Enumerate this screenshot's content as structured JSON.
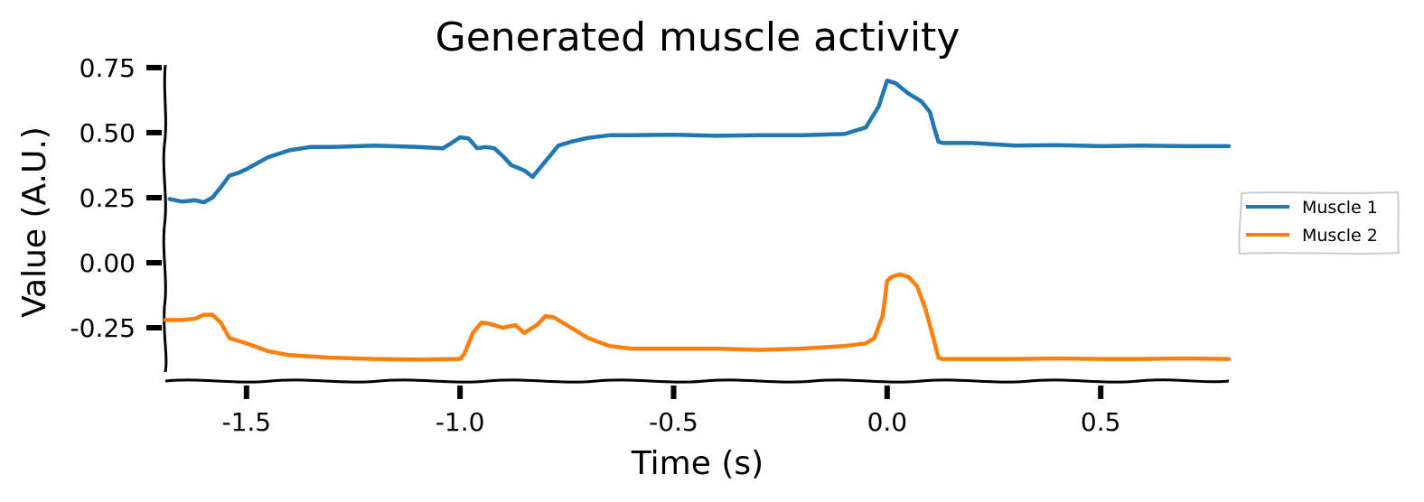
{
  "chart_data": {
    "type": "line",
    "title": "Generated muscle activity",
    "xlabel": "Time (s)",
    "ylabel": "Value (A.U.)",
    "xlim": [
      -1.69,
      0.8
    ],
    "ylim": [
      -0.42,
      0.76
    ],
    "xticks": [
      -1.5,
      -1.0,
      -0.5,
      0.0,
      0.5
    ],
    "xtick_labels": [
      "-1.5",
      "-1.0",
      "-0.5",
      "0.0",
      "0.5"
    ],
    "yticks": [
      0.75,
      0.5,
      0.25,
      0.0,
      -0.25
    ],
    "ytick_labels": [
      "0.75",
      "0.50",
      "0.25",
      "0.00",
      "-0.25"
    ],
    "grid": false,
    "legend_position": "center-right outside",
    "colors": {
      "muscle1": "#1f77b4",
      "muscle2": "#ff7f0e"
    },
    "series": [
      {
        "name": "Muscle 1",
        "color": "#1f77b4",
        "x": [
          -1.68,
          -1.65,
          -1.62,
          -1.6,
          -1.58,
          -1.56,
          -1.54,
          -1.52,
          -1.5,
          -1.45,
          -1.4,
          -1.35,
          -1.3,
          -1.2,
          -1.1,
          -1.04,
          -1.02,
          -1.0,
          -0.98,
          -0.96,
          -0.94,
          -0.92,
          -0.9,
          -0.88,
          -0.85,
          -0.83,
          -0.8,
          -0.77,
          -0.74,
          -0.7,
          -0.65,
          -0.6,
          -0.5,
          -0.4,
          -0.3,
          -0.2,
          -0.1,
          -0.05,
          -0.02,
          0.0,
          0.02,
          0.05,
          0.08,
          0.1,
          0.11,
          0.12,
          0.13,
          0.2,
          0.3,
          0.4,
          0.5,
          0.6,
          0.7,
          0.8
        ],
        "values": [
          0.245,
          0.235,
          0.24,
          0.232,
          0.25,
          0.29,
          0.335,
          0.345,
          0.36,
          0.405,
          0.432,
          0.445,
          0.445,
          0.45,
          0.445,
          0.44,
          0.46,
          0.482,
          0.478,
          0.44,
          0.445,
          0.44,
          0.41,
          0.375,
          0.355,
          0.33,
          0.39,
          0.45,
          0.465,
          0.48,
          0.49,
          0.49,
          0.492,
          0.488,
          0.49,
          0.49,
          0.495,
          0.52,
          0.6,
          0.7,
          0.69,
          0.65,
          0.62,
          0.58,
          0.52,
          0.465,
          0.46,
          0.46,
          0.45,
          0.452,
          0.448,
          0.45,
          0.448,
          0.448
        ]
      },
      {
        "name": "Muscle 2",
        "color": "#ff7f0e",
        "x": [
          -1.69,
          -1.65,
          -1.62,
          -1.6,
          -1.58,
          -1.56,
          -1.54,
          -1.52,
          -1.5,
          -1.45,
          -1.4,
          -1.3,
          -1.2,
          -1.1,
          -1.0,
          -0.99,
          -0.97,
          -0.95,
          -0.93,
          -0.9,
          -0.87,
          -0.85,
          -0.82,
          -0.8,
          -0.78,
          -0.74,
          -0.7,
          -0.65,
          -0.6,
          -0.5,
          -0.4,
          -0.3,
          -0.2,
          -0.1,
          -0.05,
          -0.03,
          -0.01,
          0.0,
          0.01,
          0.03,
          0.05,
          0.07,
          0.09,
          0.11,
          0.12,
          0.13,
          0.2,
          0.3,
          0.4,
          0.5,
          0.6,
          0.7,
          0.8
        ],
        "values": [
          -0.22,
          -0.22,
          -0.215,
          -0.2,
          -0.2,
          -0.23,
          -0.29,
          -0.3,
          -0.31,
          -0.34,
          -0.355,
          -0.365,
          -0.37,
          -0.372,
          -0.37,
          -0.35,
          -0.27,
          -0.23,
          -0.235,
          -0.25,
          -0.24,
          -0.27,
          -0.24,
          -0.205,
          -0.21,
          -0.25,
          -0.29,
          -0.32,
          -0.33,
          -0.33,
          -0.33,
          -0.335,
          -0.33,
          -0.32,
          -0.31,
          -0.29,
          -0.2,
          -0.07,
          -0.055,
          -0.045,
          -0.055,
          -0.09,
          -0.18,
          -0.3,
          -0.365,
          -0.37,
          -0.37,
          -0.37,
          -0.368,
          -0.37,
          -0.37,
          -0.368,
          -0.37
        ]
      }
    ]
  }
}
